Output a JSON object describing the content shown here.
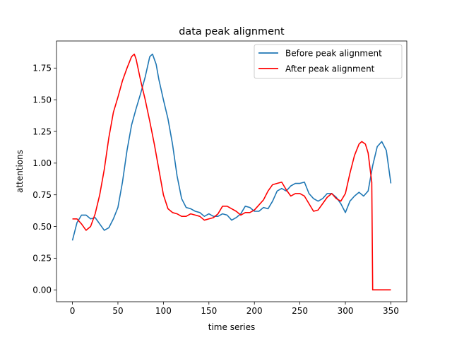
{
  "chart_data": {
    "type": "line",
    "title": "data peak alignment",
    "xlabel": "time series",
    "ylabel": "attentions",
    "xlim": [
      -17.5,
      367.5
    ],
    "ylim": [
      -0.0935,
      1.9635
    ],
    "xticks": [
      0,
      50,
      100,
      150,
      200,
      250,
      300,
      350
    ],
    "yticks": [
      0.0,
      0.25,
      0.5,
      0.75,
      1.0,
      1.25,
      1.5,
      1.75
    ],
    "xtick_labels": [
      "0",
      "50",
      "100",
      "150",
      "200",
      "250",
      "300",
      "350"
    ],
    "ytick_labels": [
      "0.00",
      "0.25",
      "0.50",
      "0.75",
      "1.00",
      "1.25",
      "1.50",
      "1.75"
    ],
    "grid": false,
    "legend_position": "upper right",
    "series": [
      {
        "name": "Before peak alignment",
        "color": "#1f77b4",
        "x": [
          0,
          5,
          10,
          15,
          20,
          25,
          30,
          35,
          40,
          45,
          50,
          55,
          60,
          65,
          70,
          75,
          80,
          85,
          88,
          92,
          95,
          100,
          105,
          110,
          115,
          120,
          125,
          130,
          135,
          140,
          145,
          150,
          155,
          160,
          165,
          170,
          175,
          180,
          185,
          190,
          195,
          200,
          205,
          210,
          215,
          220,
          225,
          230,
          235,
          240,
          245,
          250,
          255,
          260,
          265,
          270,
          275,
          280,
          285,
          290,
          295,
          300,
          305,
          310,
          315,
          320,
          325,
          330,
          335,
          340,
          345,
          350
        ],
        "y": [
          0.39,
          0.53,
          0.59,
          0.59,
          0.56,
          0.57,
          0.52,
          0.47,
          0.49,
          0.56,
          0.65,
          0.85,
          1.1,
          1.3,
          1.43,
          1.55,
          1.68,
          1.84,
          1.86,
          1.78,
          1.66,
          1.5,
          1.35,
          1.15,
          0.9,
          0.72,
          0.65,
          0.64,
          0.62,
          0.61,
          0.58,
          0.6,
          0.58,
          0.58,
          0.6,
          0.59,
          0.55,
          0.57,
          0.6,
          0.66,
          0.65,
          0.62,
          0.62,
          0.65,
          0.64,
          0.7,
          0.78,
          0.8,
          0.78,
          0.82,
          0.84,
          0.84,
          0.85,
          0.76,
          0.72,
          0.7,
          0.72,
          0.76,
          0.76,
          0.73,
          0.68,
          0.61,
          0.7,
          0.74,
          0.77,
          0.74,
          0.78,
          0.98,
          1.13,
          1.17,
          1.1,
          0.84
        ]
      },
      {
        "name": "After peak alignment",
        "color": "#ff0000",
        "x": [
          0,
          5,
          10,
          15,
          20,
          25,
          30,
          35,
          40,
          45,
          50,
          55,
          60,
          65,
          68,
          70,
          75,
          80,
          85,
          90,
          95,
          100,
          105,
          110,
          115,
          120,
          125,
          130,
          135,
          140,
          145,
          150,
          155,
          160,
          165,
          170,
          175,
          180,
          185,
          190,
          195,
          200,
          205,
          210,
          215,
          220,
          225,
          230,
          235,
          240,
          245,
          250,
          255,
          260,
          265,
          270,
          275,
          280,
          285,
          290,
          295,
          300,
          305,
          310,
          315,
          318,
          322,
          325,
          329,
          330,
          335,
          340,
          345,
          350
        ],
        "y": [
          0.56,
          0.56,
          0.52,
          0.47,
          0.5,
          0.6,
          0.75,
          0.95,
          1.2,
          1.4,
          1.52,
          1.65,
          1.75,
          1.84,
          1.86,
          1.82,
          1.65,
          1.5,
          1.33,
          1.15,
          0.95,
          0.75,
          0.64,
          0.61,
          0.6,
          0.58,
          0.58,
          0.6,
          0.59,
          0.58,
          0.55,
          0.56,
          0.57,
          0.6,
          0.66,
          0.66,
          0.64,
          0.62,
          0.59,
          0.61,
          0.61,
          0.63,
          0.67,
          0.71,
          0.78,
          0.83,
          0.84,
          0.85,
          0.79,
          0.74,
          0.76,
          0.76,
          0.74,
          0.68,
          0.62,
          0.63,
          0.68,
          0.73,
          0.76,
          0.72,
          0.7,
          0.76,
          0.92,
          1.06,
          1.15,
          1.17,
          1.15,
          1.08,
          0.85,
          0.0,
          0.0,
          0.0,
          0.0,
          0.0
        ]
      }
    ]
  }
}
